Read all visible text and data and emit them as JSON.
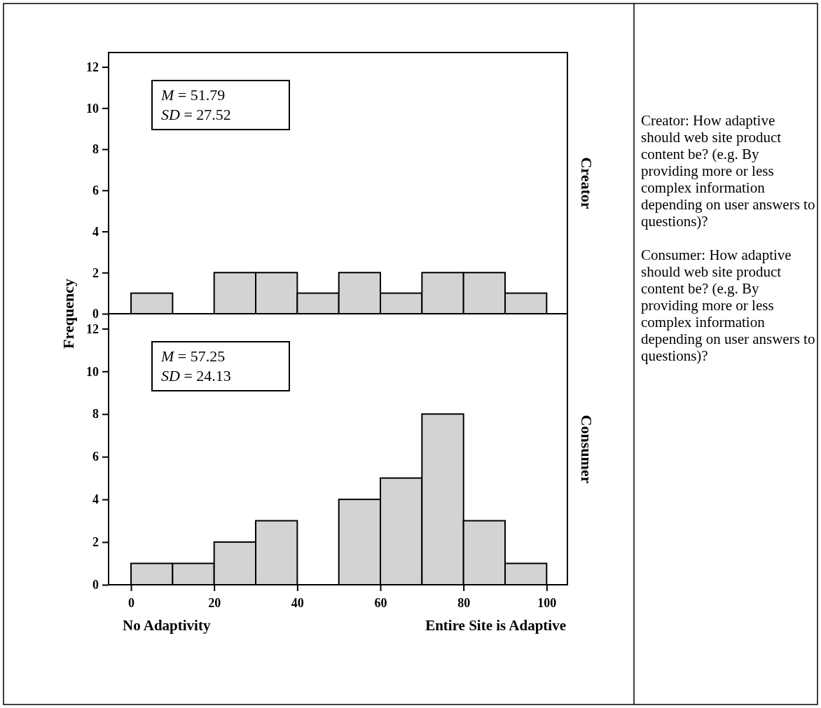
{
  "chart_data": [
    {
      "type": "histogram",
      "ylabel": "Frequency",
      "bins": [
        0,
        10,
        20,
        30,
        40,
        50,
        60,
        70,
        80,
        90,
        100
      ],
      "values": [
        1,
        0,
        2,
        2,
        1,
        2,
        1,
        2,
        2,
        1
      ],
      "color": "#d3d3d3",
      "xlim": [
        -5.4,
        105
      ],
      "ylim": [
        0,
        12.7
      ],
      "yticks": [
        0,
        2,
        4,
        6,
        8,
        10,
        12
      ],
      "tick_labels": "y",
      "annotations": [
        "Creator",
        "M = 51.79",
        "SD = 27.52"
      ]
    },
    {
      "type": "histogram",
      "bins": [
        0,
        10,
        20,
        30,
        40,
        50,
        60,
        70,
        80,
        90,
        100
      ],
      "values": [
        1,
        1,
        2,
        3,
        0,
        4,
        5,
        8,
        3,
        1
      ],
      "color": "#d3d3d3",
      "xlim": [
        -5.4,
        105
      ],
      "ylim": [
        0,
        12.7
      ],
      "yticks": [
        0,
        2,
        4,
        6,
        8,
        10,
        12
      ],
      "xticks": [
        0,
        20,
        40,
        60,
        80,
        100
      ],
      "annotations": [
        "Consumer",
        "M = 57.25",
        "SD = 24.13",
        "No Adaptivity",
        "Entire Site is Adaptive"
      ]
    },
    {
      "type": "other",
      "annotations": [
        "Creator: How adaptive should web site product content be? (e.g. By providing more or less complex information depending on user answers to questions)?",
        "Consumer: How adaptive should web site product content be? (e.g. By providing more or less complex information depending on user answers to questions)?"
      ]
    }
  ]
}
